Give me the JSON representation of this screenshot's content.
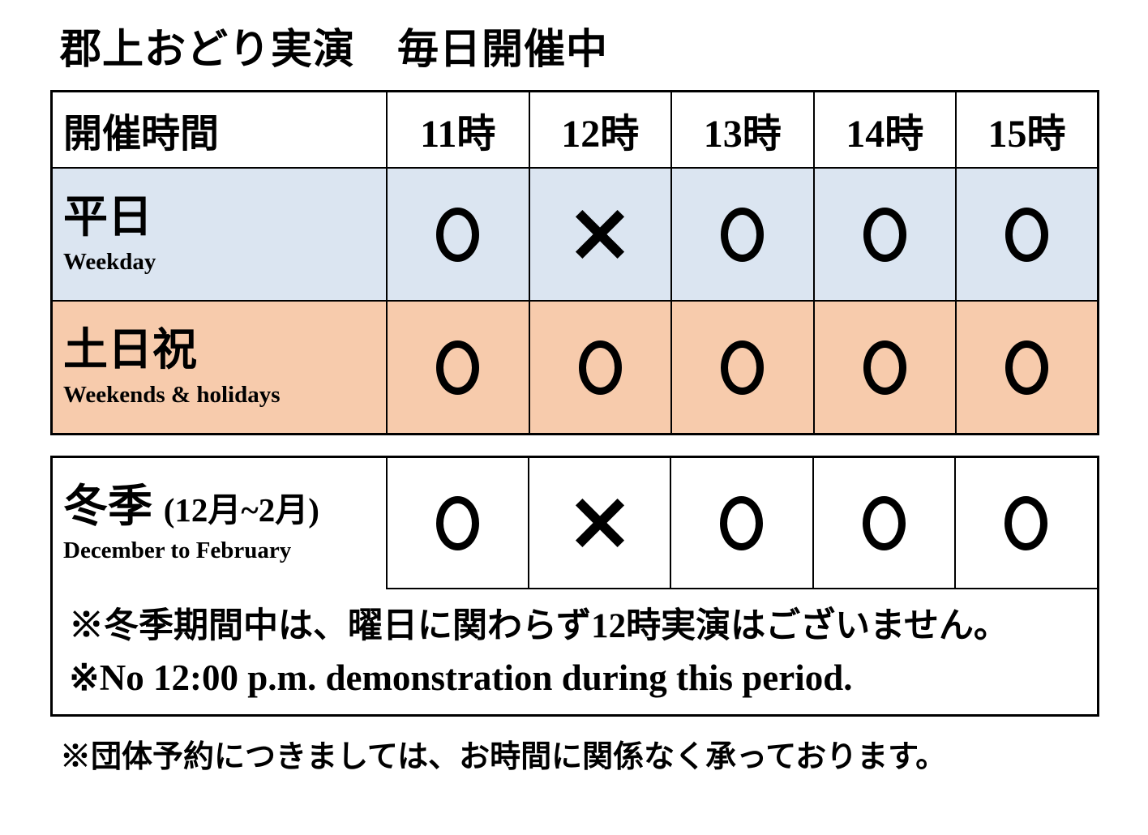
{
  "title": "郡上おどり実演　毎日開催中",
  "colors": {
    "weekday_bg": "#dbe5f1",
    "weekend_bg": "#f7cbac",
    "border": "#000000"
  },
  "marks_legend": {
    "circle": "○",
    "cross": "×"
  },
  "schedule_table": {
    "header": {
      "label": "開催時間",
      "times": [
        "11時",
        "12時",
        "13時",
        "14時",
        "15時"
      ]
    },
    "rows": [
      {
        "label_jp": "平日",
        "label_en": "Weekday",
        "marks": [
          "circle",
          "cross",
          "circle",
          "circle",
          "circle"
        ]
      },
      {
        "label_jp": "土日祝",
        "label_en": "Weekends & holidays",
        "marks": [
          "circle",
          "circle",
          "circle",
          "circle",
          "circle"
        ]
      }
    ]
  },
  "winter_table": {
    "label_jp": "冬季",
    "label_period": "(12月~2月)",
    "label_en": "December to February",
    "marks": [
      "circle",
      "cross",
      "circle",
      "circle",
      "circle"
    ],
    "notes": [
      "※冬季期間中は、曜日に関わらず12時実演はございません。",
      "※No 12:00 p.m. demonstration during this period."
    ]
  },
  "footer_note": "※団体予約につきましては、お時間に関係なく承っております。"
}
